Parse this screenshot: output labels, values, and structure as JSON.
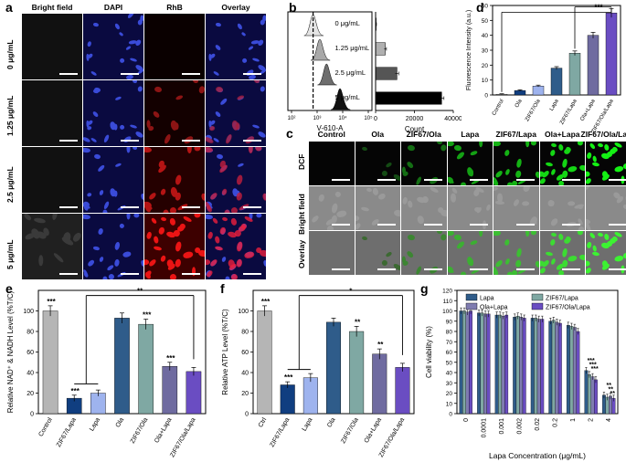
{
  "panel_a": {
    "label": "a",
    "columns": [
      "Bright field",
      "DAPI",
      "RhB",
      "Overlay"
    ],
    "rows": [
      "0 μg/mL",
      "1.25 μg/mL",
      "2.5 μg/mL",
      "5 μg/mL"
    ],
    "rhb_intensity": [
      0.0,
      0.15,
      0.45,
      0.85
    ]
  },
  "panel_b": {
    "label": "b",
    "hist_labels": [
      "0 μg/mL",
      "1.25 μg/mL",
      "2.5 μg/mL",
      "5 μg/mL"
    ],
    "hist_colors": [
      "#e4e4e4",
      "#a8a8a8",
      "#6e6e6e",
      "#111111"
    ],
    "x_axis_title": "V-610-A",
    "x_ticks": [
      "10²",
      "10³",
      "10⁴",
      "10⁵"
    ],
    "bar_x_axis_title": "Count",
    "bar_x_ticks": [
      "0",
      "20000",
      "40000"
    ]
  },
  "panel_c": {
    "label": "c",
    "columns": [
      "Control",
      "Ola",
      "ZIF67/Ola",
      "Lapa",
      "ZIF67/Lapa",
      "Ola+Lapa",
      "ZIF67/Ola/Lapa"
    ],
    "rows": [
      "DCF",
      "Bright field",
      "Overlay"
    ],
    "dcf_intensity": [
      0.0,
      0.03,
      0.22,
      0.5,
      0.6,
      0.8,
      0.95
    ]
  },
  "panel_d": {
    "label": "d",
    "significance": "***"
  },
  "panel_e": {
    "label": "e",
    "sig_bracket": "**",
    "sig_labels": [
      "***",
      "***",
      "",
      "",
      "***",
      "***"
    ]
  },
  "panel_f": {
    "label": "f",
    "sig_bracket": "*",
    "sig_labels": [
      "***",
      "***",
      "",
      "",
      "**",
      "**"
    ]
  },
  "panel_g": {
    "label": "g",
    "sig_labels": [
      "***",
      "***",
      "***",
      "**",
      "**",
      "**"
    ]
  },
  "chart_data": [
    {
      "id": "b",
      "type": "bar",
      "orientation": "horizontal",
      "categories": [
        "0 μg/mL",
        "1.25 μg/mL",
        "2.5 μg/mL",
        "5 μg/mL"
      ],
      "values": [
        300,
        5000,
        11000,
        34000
      ],
      "errors": [
        150,
        600,
        900,
        1200
      ],
      "xlabel": "Count",
      "xlim": [
        0,
        40000
      ],
      "colors": [
        "#e8e8e8",
        "#b0b0b0",
        "#555555",
        "#000000"
      ]
    },
    {
      "id": "d",
      "type": "bar",
      "categories": [
        "Control",
        "Ola",
        "ZIF67/Ola",
        "Lapa",
        "ZIF67/Lapa",
        "Ola+Lapa",
        "ZIF67/Ola/Lapa"
      ],
      "values": [
        0.5,
        3,
        6,
        18,
        28,
        40,
        55
      ],
      "errors": [
        0.3,
        0.5,
        0.6,
        1,
        1.5,
        2,
        3
      ],
      "ylabel": "Fluorescence Intensity (a.u.)",
      "ylim": [
        0,
        60
      ],
      "yticks": [
        0,
        10,
        20,
        30,
        40,
        50,
        60
      ],
      "colors": [
        "#b5b5b5",
        "#103e80",
        "#9eb3ee",
        "#2f5c8a",
        "#7fa8a3",
        "#6f6ba0",
        "#6a4dc2"
      ]
    },
    {
      "id": "e",
      "type": "bar",
      "categories": [
        "Control",
        "ZIF67/Lapa",
        "Lapa",
        "Ola",
        "ZIF67/Ola",
        "Ola+Lapa",
        "ZIF67/Ola/Lapa"
      ],
      "values": [
        100,
        15,
        20,
        93,
        87,
        46,
        41
      ],
      "errors": [
        5,
        3,
        3,
        5,
        5,
        4,
        4
      ],
      "ylabel": "Relative NAD⁺ & NADH Level (%T/C)",
      "ylim": [
        0,
        120
      ],
      "yticks": [
        0,
        20,
        40,
        60,
        80,
        100
      ],
      "colors": [
        "#b5b5b5",
        "#103e80",
        "#9eb3ee",
        "#2f5c8a",
        "#7fa8a3",
        "#6f6ba0",
        "#6a4dc2"
      ]
    },
    {
      "id": "f",
      "type": "bar",
      "categories": [
        "Ctrl",
        "ZIF67/Lapa",
        "Lapa",
        "Ola",
        "ZIF67/Ola",
        "Ola+Lapa",
        "ZIF67/Ola/Lapa"
      ],
      "values": [
        100,
        28,
        35,
        89,
        80,
        58,
        45
      ],
      "errors": [
        5,
        3,
        4,
        4,
        5,
        5,
        4
      ],
      "ylabel": "Relative ATP Level (%T/C)",
      "ylim": [
        0,
        120
      ],
      "yticks": [
        0,
        20,
        40,
        60,
        80,
        100
      ],
      "colors": [
        "#b5b5b5",
        "#103e80",
        "#9eb3ee",
        "#2f5c8a",
        "#7fa8a3",
        "#6f6ba0",
        "#6a4dc2"
      ]
    },
    {
      "id": "g",
      "type": "bar",
      "categories": [
        "0",
        "0.0001",
        "0.001",
        "0.002",
        "0.02",
        "0.2",
        "1",
        "2",
        "4"
      ],
      "series": [
        {
          "name": "Lapa",
          "values": [
            100,
            98,
            96,
            94,
            93,
            90,
            86,
            42,
            18
          ],
          "color": "#2f5c8a"
        },
        {
          "name": "ZIF67/Lapa",
          "values": [
            100,
            98,
            96,
            95,
            93,
            91,
            85,
            38,
            16
          ],
          "color": "#7fa8a3"
        },
        {
          "name": "Ola+Lapa",
          "values": [
            99,
            97,
            95,
            94,
            92,
            89,
            84,
            36,
            17
          ],
          "color": "#7f7cb0"
        },
        {
          "name": "ZIF67/Ola/Lapa",
          "values": [
            100,
            97,
            96,
            93,
            92,
            88,
            80,
            33,
            15
          ],
          "color": "#6a4dc2"
        }
      ],
      "error": 3,
      "xlabel": "Lapa Concentration (μg/mL)",
      "ylabel": "Cell viability (%)",
      "ylim": [
        0,
        120
      ],
      "yticks": [
        0,
        10,
        20,
        30,
        40,
        50,
        60,
        70,
        80,
        90,
        100,
        110,
        120
      ]
    }
  ]
}
